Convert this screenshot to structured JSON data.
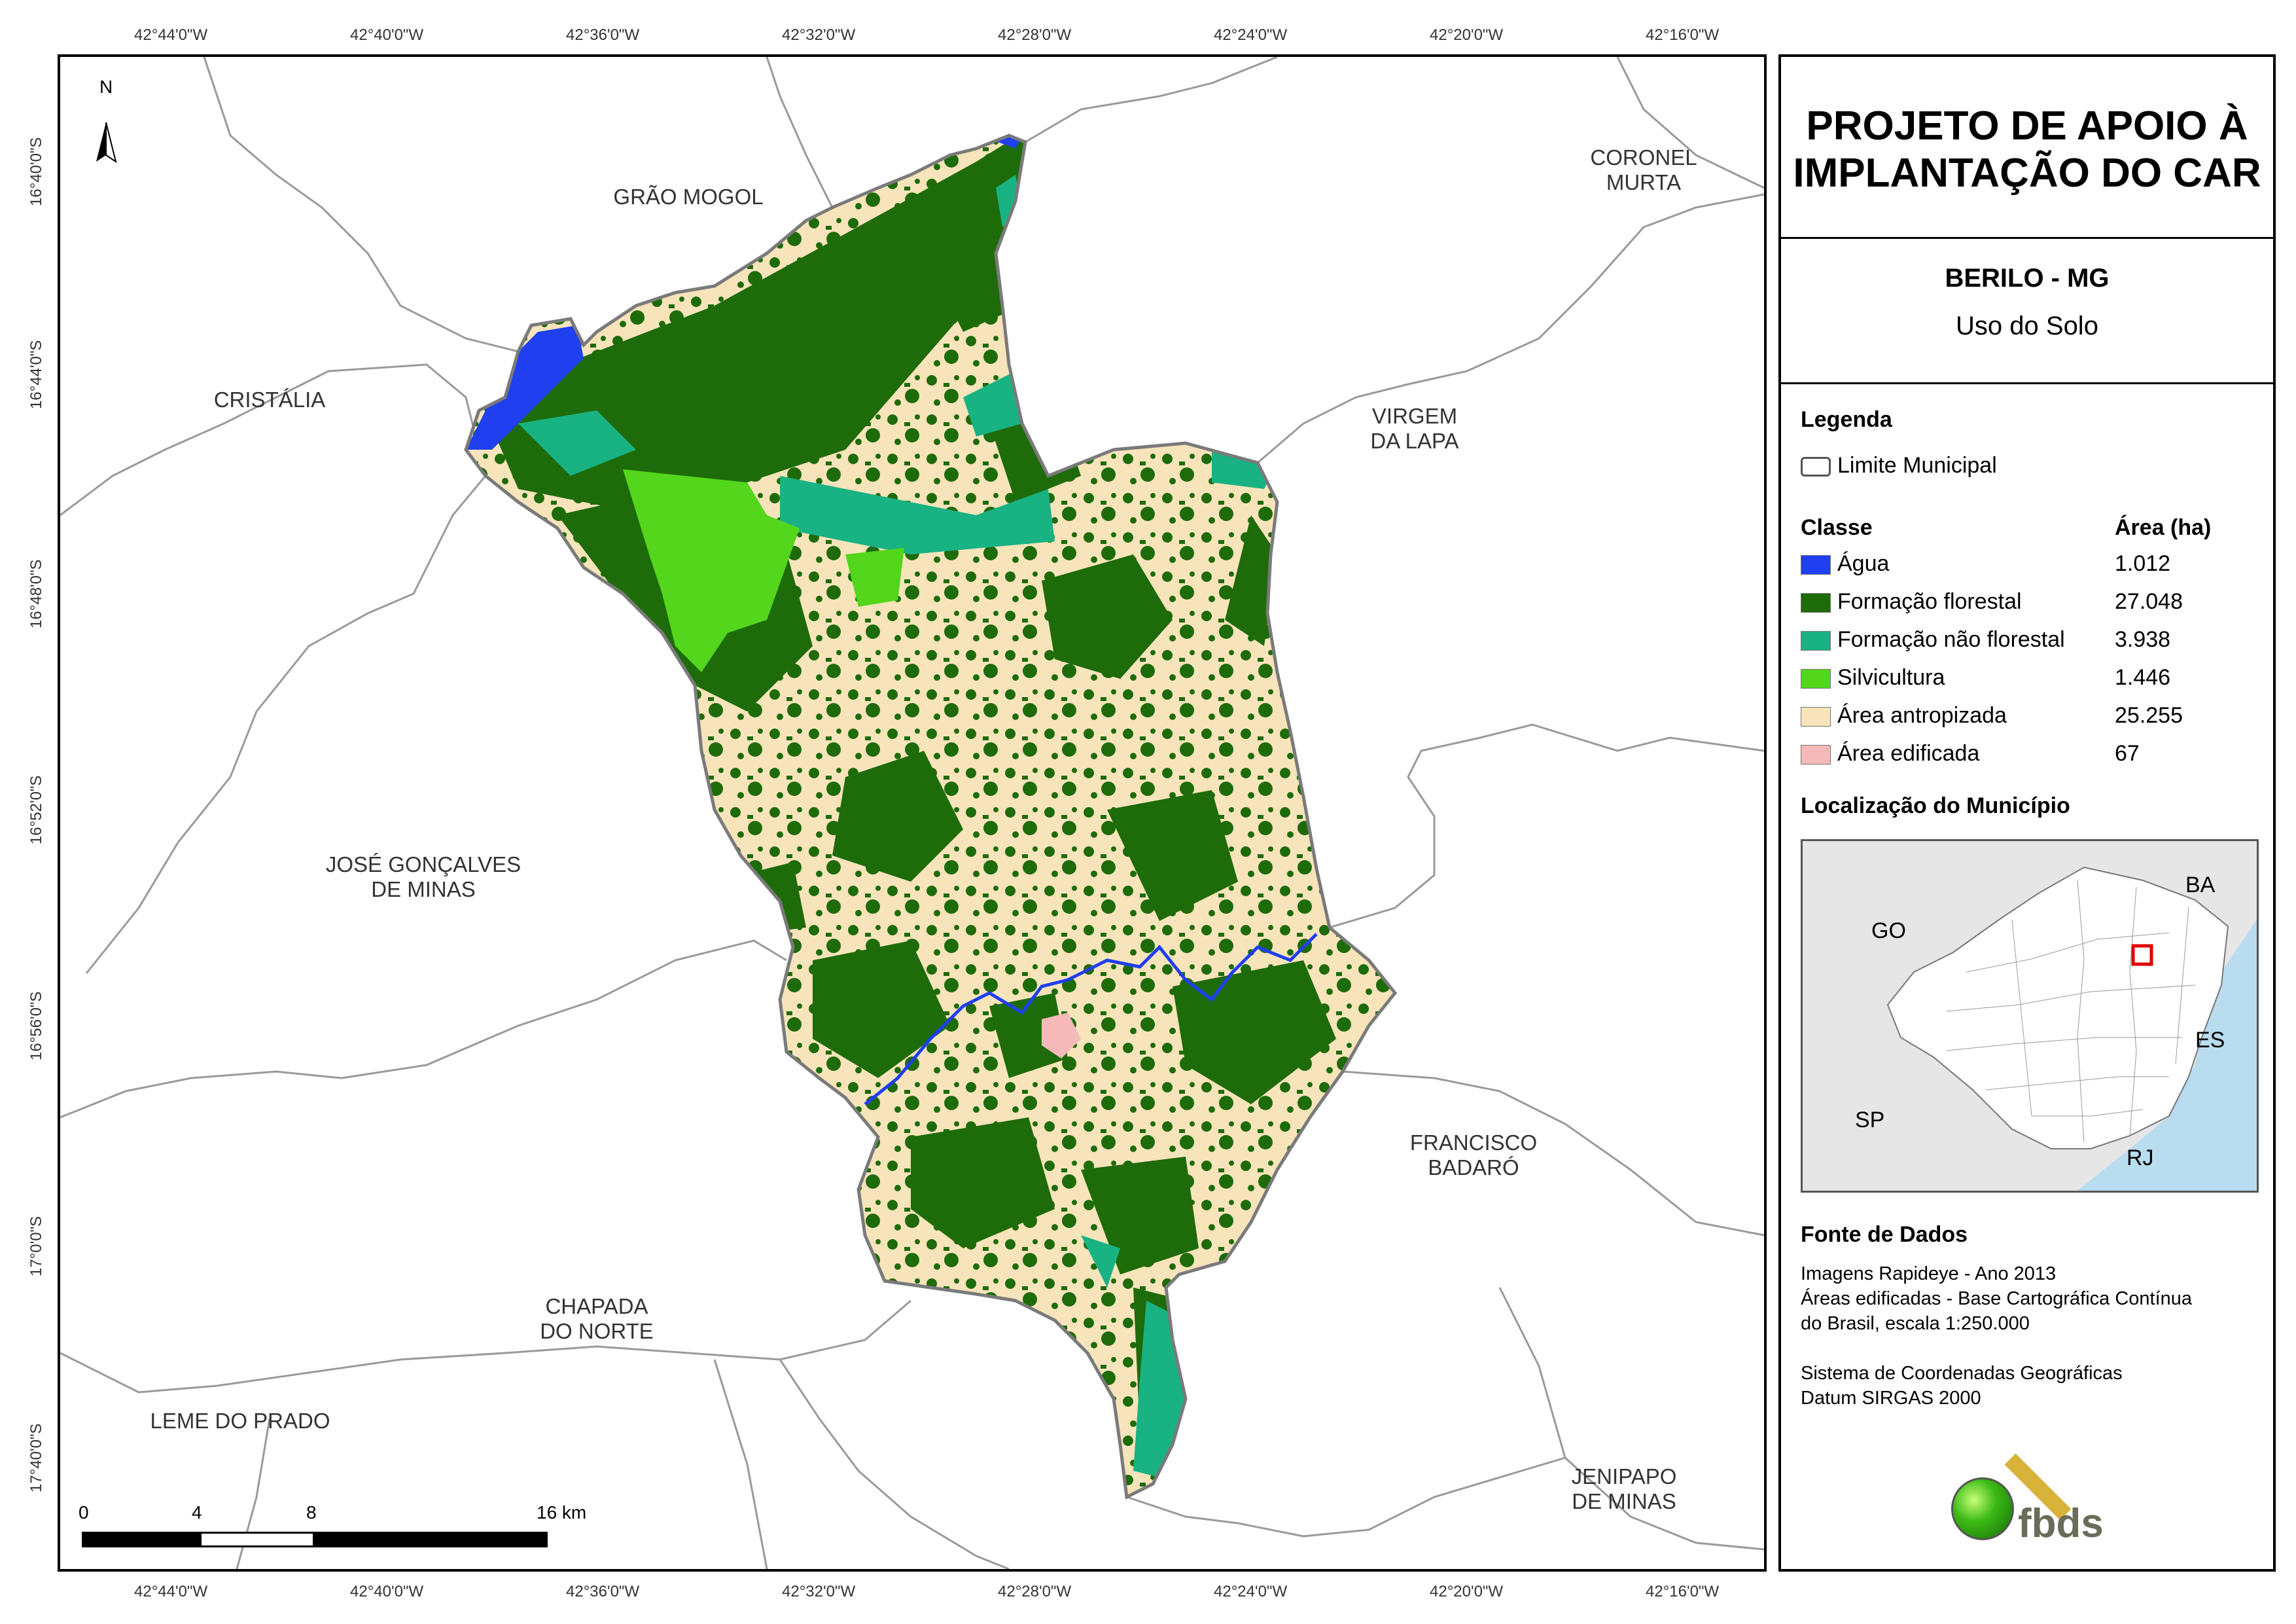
{
  "graticule": {
    "longitudes": [
      "42°44'0\"W",
      "42°40'0\"W",
      "42°36'0\"W",
      "42°32'0\"W",
      "42°28'0\"W",
      "42°24'0\"W",
      "42°20'0\"W",
      "42°16'0\"W"
    ],
    "latitudes": [
      "16°40'0\"S",
      "16°44'0\"S",
      "16°48'0\"S",
      "16°52'0\"S",
      "16°56'0\"S",
      "17°0'0\"S",
      "17°40'0\"S"
    ]
  },
  "map": {
    "north_label": "N",
    "neighbor_municipalities": [
      {
        "line1": "GRÃO MOGOL",
        "line2": ""
      },
      {
        "line1": "CORONEL",
        "line2": "MURTA"
      },
      {
        "line1": "CRISTÁLIA",
        "line2": ""
      },
      {
        "line1": "VIRGEM",
        "line2": "DA LAPA"
      },
      {
        "line1": "JOSÉ GONÇALVES",
        "line2": "DE MINAS"
      },
      {
        "line1": "FRANCISCO",
        "line2": "BADARÓ"
      },
      {
        "line1": "CHAPADA",
        "line2": "DO NORTE"
      },
      {
        "line1": "LEME DO PRADO",
        "line2": ""
      },
      {
        "line1": "JENIPAPO",
        "line2": "DE MINAS"
      }
    ],
    "scale": {
      "ticks": [
        "0",
        "4",
        "8",
        "16 km"
      ]
    }
  },
  "panel": {
    "project_title_line1": "PROJETO DE APOIO À",
    "project_title_line2": "IMPLANTAÇÃO DO CAR",
    "municipality": "BERILO - MG",
    "theme": "Uso do Solo",
    "legend_heading": "Legenda",
    "boundary_label": "Limite Municipal",
    "class_heading": "Classe",
    "area_heading": "Área (ha)",
    "classes": [
      {
        "name": "Água",
        "area": "1.012",
        "color": "#1f3ff0"
      },
      {
        "name": "Formação florestal",
        "area": "27.048",
        "color": "#1e6b0a"
      },
      {
        "name": "Formação não florestal",
        "area": "3.938",
        "color": "#19b283"
      },
      {
        "name": "Silvicultura",
        "area": "1.446",
        "color": "#53d61b"
      },
      {
        "name": "Área antropizada",
        "area": "25.255",
        "color": "#f7e4bb"
      },
      {
        "name": "Área edificada",
        "area": "67",
        "color": "#f6b9b9"
      }
    ],
    "location_heading": "Localização do Município",
    "inset_labels": [
      "BA",
      "GO",
      "ES",
      "SP",
      "RJ"
    ],
    "sources_heading": "Fonte de Dados",
    "sources": [
      "Imagens Rapideye - Ano 2013",
      "Áreas edificadas - Base Cartográfica Contínua",
      "do Brasil, escala 1:250.000",
      "",
      "Sistema de Coordenadas Geográficas",
      "Datum SIRGAS 2000"
    ],
    "logo_text": "fbds"
  },
  "colors": {
    "agua": "#1f3ff0",
    "forest": "#1e6b0a",
    "nonforest": "#19b283",
    "silv": "#53d61b",
    "anthropized": "#f7e4bb",
    "built": "#f6b9b9",
    "boundary": "#7a7a7a",
    "location_marker": "#e00000"
  }
}
